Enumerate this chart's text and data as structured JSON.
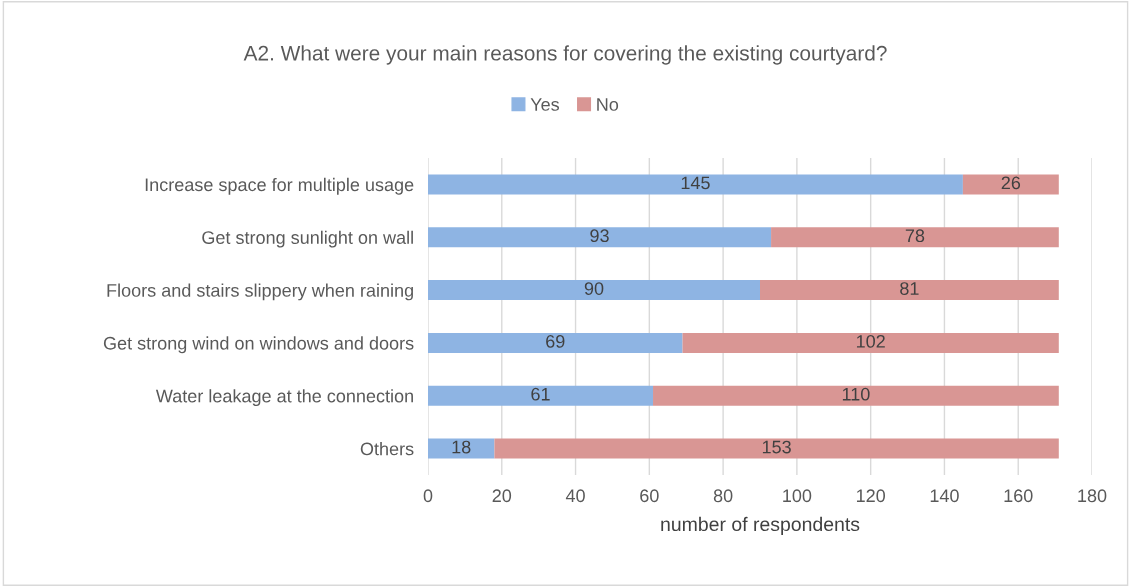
{
  "chart_data": {
    "type": "bar",
    "orientation": "horizontal",
    "stacked": true,
    "title": "A2. What were your main reasons for covering the existing courtyard?",
    "xlabel": "number of respondents",
    "categories": [
      "Increase space for multiple usage",
      "Get strong sunlight on wall",
      "Floors and stairs slippery when raining",
      "Get strong wind on windows and doors",
      "Water leakage at the connection",
      "Others"
    ],
    "series": [
      {
        "name": "Yes",
        "color": "#8eb4e3",
        "values": [
          145,
          93,
          90,
          69,
          61,
          18
        ]
      },
      {
        "name": "No",
        "color": "#d99694",
        "values": [
          26,
          78,
          81,
          102,
          110,
          153
        ]
      }
    ],
    "xlim": [
      0,
      180
    ],
    "xticks": [
      0,
      20,
      40,
      60,
      80,
      100,
      120,
      140,
      160,
      180
    ],
    "grid": "x",
    "legend": "top",
    "data_labels": true
  }
}
